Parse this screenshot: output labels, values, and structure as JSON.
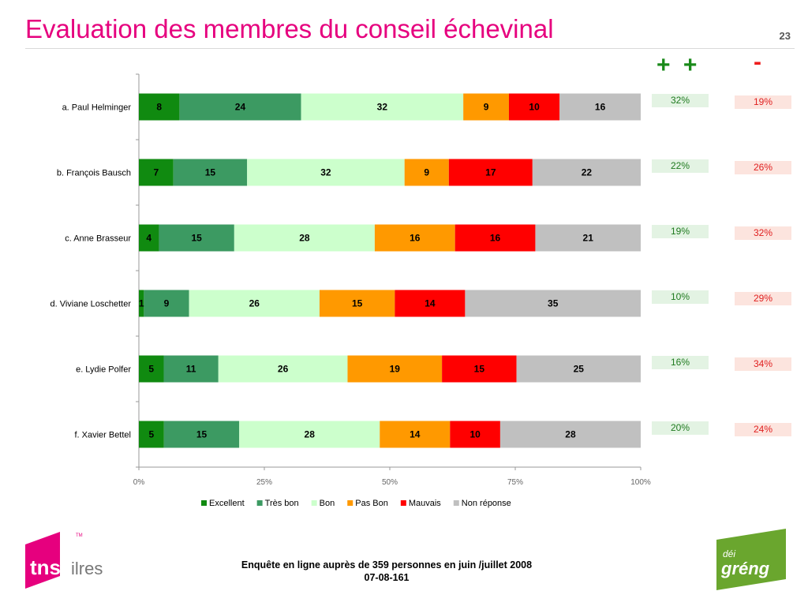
{
  "header": {
    "title": "Evaluation des membres du conseil échevinal",
    "page_number": "23"
  },
  "columns": {
    "positive_header": "+ +",
    "negative_header": "-"
  },
  "chart_data": {
    "type": "bar",
    "orientation": "horizontal",
    "stacked": "100%",
    "categories": [
      "a. Paul Helminger",
      "b. François Bausch",
      "c. Anne Brasseur",
      "d. Viviane Loschetter",
      "e. Lydie Polfer",
      "f. Xavier Bettel"
    ],
    "series": [
      {
        "name": "Excellent",
        "color": "#108a10",
        "values": [
          8,
          7,
          4,
          1,
          5,
          5
        ]
      },
      {
        "name": "Très bon",
        "color": "#3c9a62",
        "values": [
          24,
          15,
          15,
          9,
          11,
          15
        ]
      },
      {
        "name": "Bon",
        "color": "#ccffcc",
        "values": [
          32,
          32,
          28,
          26,
          26,
          28
        ]
      },
      {
        "name": "Pas Bon",
        "color": "#ff9900",
        "values": [
          9,
          9,
          16,
          15,
          19,
          14
        ]
      },
      {
        "name": "Mauvais",
        "color": "#ff0000",
        "values": [
          10,
          17,
          16,
          14,
          15,
          10
        ]
      },
      {
        "name": "Non réponse",
        "color": "#c0c0c0",
        "values": [
          16,
          22,
          21,
          35,
          25,
          28
        ]
      }
    ],
    "xaxis": {
      "ticks": [
        "0%",
        "25%",
        "50%",
        "75%",
        "100%"
      ],
      "range": [
        0,
        100
      ]
    },
    "legend_position": "bottom",
    "positive_share": [
      "32%",
      "22%",
      "19%",
      "10%",
      "16%",
      "20%"
    ],
    "negative_share": [
      "19%",
      "26%",
      "32%",
      "29%",
      "34%",
      "24%"
    ]
  },
  "footer": {
    "line1": "Enquête en ligne auprès de 359 personnes en juin /juillet 2008",
    "line2": "07-08-161"
  },
  "logos": {
    "tns_text": "tns",
    "tns_suffix": "ilres",
    "tns_tm": "TM",
    "greng_top": "déi",
    "greng_main": "gréng"
  },
  "colors": {
    "title": "#e6007e",
    "positive": "#1f7a1f",
    "negative": "#e02020"
  }
}
